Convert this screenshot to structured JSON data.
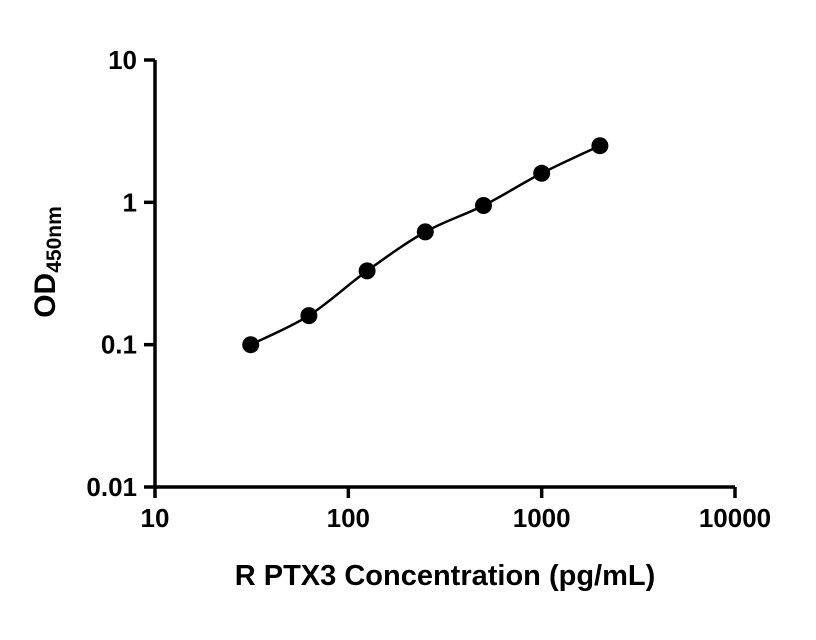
{
  "chart_data": {
    "type": "scatter",
    "title": "",
    "xlabel": "R PTX3 Concentration (pg/mL)",
    "ylabel": "OD",
    "ylabel_sub": "450nm",
    "x_scale": "log",
    "y_scale": "log",
    "xlim": [
      10,
      10000
    ],
    "ylim": [
      0.01,
      10
    ],
    "x_ticks": [
      "10",
      "100",
      "1000",
      "10000"
    ],
    "y_ticks": [
      "0.01",
      "0.1",
      "1",
      "10"
    ],
    "x": [
      31.25,
      62.5,
      125,
      250,
      500,
      1000,
      2000
    ],
    "y": [
      0.1,
      0.16,
      0.33,
      0.62,
      0.95,
      1.6,
      2.5
    ],
    "line_fit": true,
    "legend": "none",
    "grid": "off",
    "marker_color": "#000000",
    "line_color": "#000000",
    "axis_color": "#000000"
  }
}
